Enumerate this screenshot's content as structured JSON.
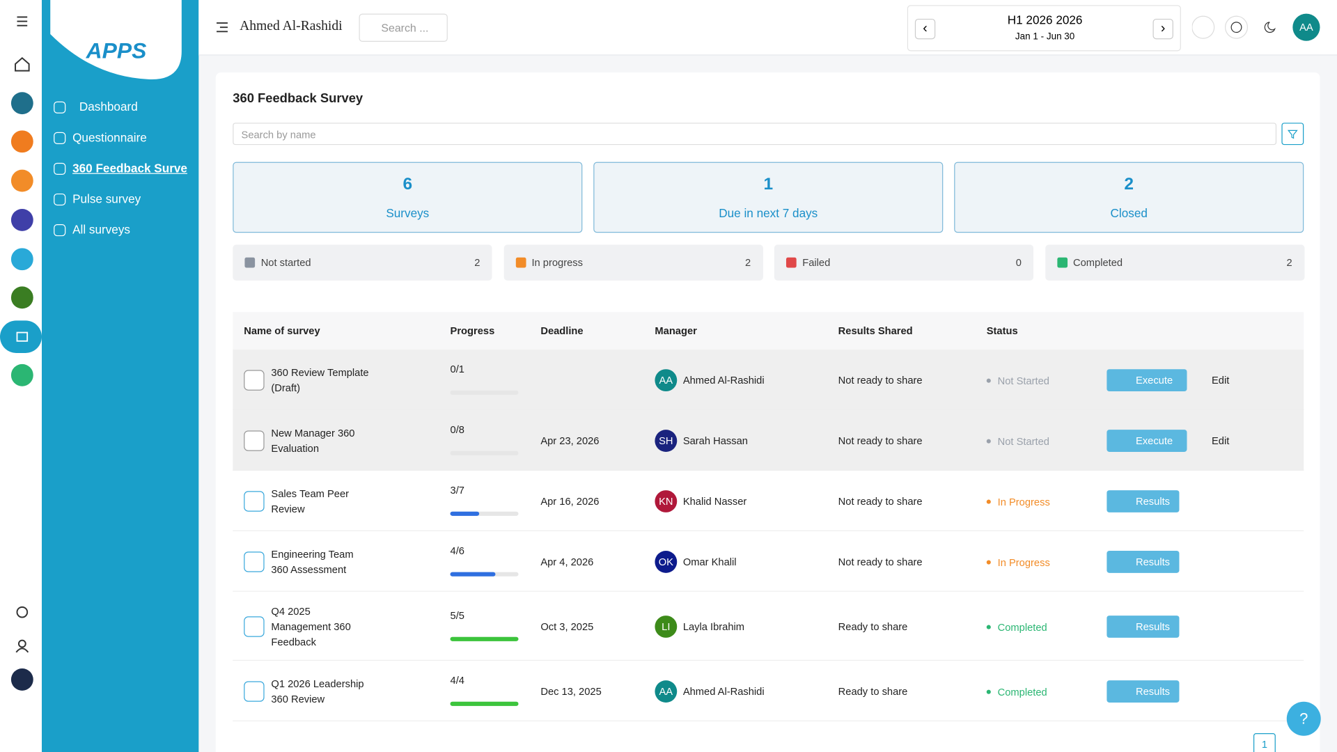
{
  "sidebar": {
    "logo": "APPS",
    "items": [
      "Dashboard",
      "Questionnaire",
      "360 Feedback Surve",
      "Pulse survey",
      "All surveys"
    ],
    "active": 2
  },
  "topbar": {
    "user_name": "Ahmed Al-Rashidi",
    "search_placeholder": "Search ...",
    "period_title": "H1 2026 2026",
    "period_range": "Jan 1 - Jun 30",
    "avatar": "AA"
  },
  "page": {
    "title": "360 Feedback Survey",
    "search_placeholder": "Search by name"
  },
  "stats": [
    {
      "value": "6",
      "label": "Surveys"
    },
    {
      "value": "1",
      "label": "Due in next 7 days"
    },
    {
      "value": "2",
      "label": "Closed"
    }
  ],
  "status_tiles": [
    {
      "label": "Not started",
      "count": "2",
      "color": "#8a93a0"
    },
    {
      "label": "In progress",
      "count": "2",
      "color": "#f28c28"
    },
    {
      "label": "Failed",
      "count": "0",
      "color": "#e04848"
    },
    {
      "label": "Completed",
      "count": "2",
      "color": "#2bb673"
    }
  ],
  "table": {
    "columns": [
      "Name of survey",
      "Progress",
      "Deadline",
      "Manager",
      "Results Shared",
      "Status"
    ],
    "rows": [
      {
        "name": "360 Review Template (Draft)",
        "progress": "0/1",
        "deadline": null,
        "initials": "AA",
        "avatar_color": "#0f8a8a",
        "manager": "Ahmed Al-Rashidi",
        "results": "Not ready to share",
        "status": "Not Started",
        "status_color": "#9aa1ab",
        "bar_color": "#2f6fe0",
        "actions": [
          "Execute",
          "Edit"
        ]
      },
      {
        "name": "New Manager 360 Evaluation",
        "progress": "0/8",
        "deadline": "Apr 23, 2026",
        "initials": "SH",
        "avatar_color": "#1a237e",
        "manager": "Sarah Hassan",
        "results": "Not ready to share",
        "status": "Not Started",
        "status_color": "#9aa1ab",
        "bar_color": "#2f6fe0",
        "actions": [
          "Execute",
          "Edit"
        ]
      },
      {
        "name": "Sales Team Peer Review",
        "progress": "3/7",
        "deadline": "Apr 16, 2026",
        "initials": "KN",
        "avatar_color": "#b0183a",
        "manager": "Khalid Nasser",
        "results": "Not ready to share",
        "status": "In Progress",
        "status_color": "#f28c28",
        "bar_color": "#2f6fe0",
        "actions": [
          "Results"
        ]
      },
      {
        "name": "Engineering Team 360 Assessment",
        "progress": "4/6",
        "deadline": "Apr 4, 2026",
        "initials": "OK",
        "avatar_color": "#0d1b8c",
        "manager": "Omar Khalil",
        "results": "Not ready to share",
        "status": "In Progress",
        "status_color": "#f28c28",
        "bar_color": "#2f6fe0",
        "actions": [
          "Results"
        ]
      },
      {
        "name": "Q4 2025 Management 360 Feedback",
        "progress": "5/5",
        "deadline": "Oct 3, 2025",
        "initials": "LI",
        "avatar_color": "#3d8b1a",
        "manager": "Layla Ibrahim",
        "results": "Ready to share",
        "status": "Completed",
        "status_color": "#2bb673",
        "bar_color": "#3cc43c",
        "actions": [
          "Results"
        ]
      },
      {
        "name": "Q1 2026 Leadership 360 Review",
        "progress": "4/4",
        "deadline": "Dec 13, 2025",
        "initials": "AA",
        "avatar_color": "#0f8a8a",
        "manager": "Ahmed Al-Rashidi",
        "results": "Ready to share",
        "status": "Completed",
        "status_color": "#2bb673",
        "bar_color": "#3cc43c",
        "actions": [
          "Results"
        ]
      }
    ]
  },
  "pagination": {
    "current": "1"
  },
  "help": "?"
}
